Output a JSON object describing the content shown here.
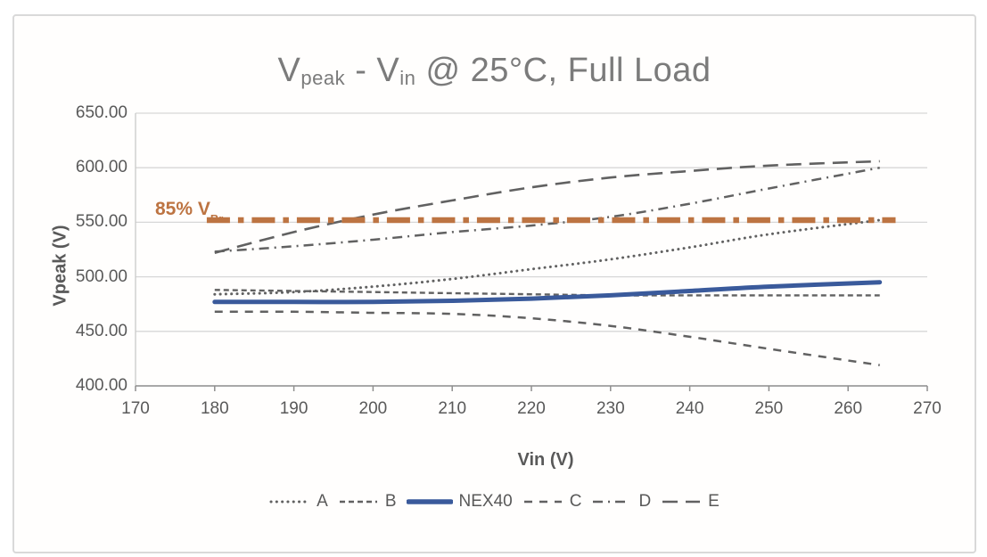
{
  "title_parts": {
    "v1": "V",
    "sub1": "peak",
    "dash": " - V",
    "sub2": "in",
    "rest": " @ 25°C, Full Load"
  },
  "colors": {
    "accent_blue": "#3a5a9b",
    "accent_orange": "#bd7442",
    "series_gray": "#616161",
    "grid": "#d7d7d7",
    "axis": "#8f8f8f",
    "tick_text": "#595959",
    "title_text": "#7b7b7b"
  },
  "chart_data": {
    "type": "line",
    "title": "Vpeak - Vin @ 25°C, Full Load",
    "xlabel": "Vin (V)",
    "ylabel": "Vpeak (V)",
    "xlim": [
      170,
      270
    ],
    "ylim": [
      400,
      650
    ],
    "x_ticks": [
      170,
      180,
      190,
      200,
      210,
      220,
      230,
      240,
      250,
      260,
      270
    ],
    "y_ticks": [
      650,
      600,
      550,
      500,
      450,
      400
    ],
    "y_tick_labels": [
      "650.00",
      "600.00",
      "550.00",
      "500.00",
      "450.00",
      "400.00"
    ],
    "grid": true,
    "legend_position": "bottom",
    "x": [
      180,
      190,
      200,
      210,
      220,
      230,
      240,
      250,
      264
    ],
    "series": [
      {
        "name": "A",
        "style": "dot",
        "color": "#616161",
        "values": [
          484,
          486,
          491,
          498,
          507,
          516,
          527,
          539,
          552
        ]
      },
      {
        "name": "B",
        "style": "dash-small",
        "color": "#616161",
        "values": [
          488,
          487,
          486,
          485,
          484,
          483,
          483,
          483,
          483
        ]
      },
      {
        "name": "NEX40",
        "style": "solid",
        "color": "#3a5a9b",
        "values": [
          477,
          477,
          477,
          478,
          480,
          483,
          487,
          491,
          495
        ]
      },
      {
        "name": "C",
        "style": "dash-med",
        "color": "#616161",
        "values": [
          468,
          468,
          467,
          466,
          462,
          455,
          445,
          434,
          419
        ]
      },
      {
        "name": "D",
        "style": "dash-dot",
        "color": "#616161",
        "values": [
          523,
          528,
          534,
          541,
          547,
          555,
          567,
          581,
          600
        ]
      },
      {
        "name": "E",
        "style": "dash-long",
        "color": "#616161",
        "values": [
          522,
          541,
          557,
          570,
          582,
          591,
          597,
          602,
          606
        ]
      }
    ],
    "ref_line": {
      "label": "85% VBr",
      "label_main": "85% V",
      "label_sub": "Br",
      "value": 552,
      "color": "#bd7442"
    }
  }
}
